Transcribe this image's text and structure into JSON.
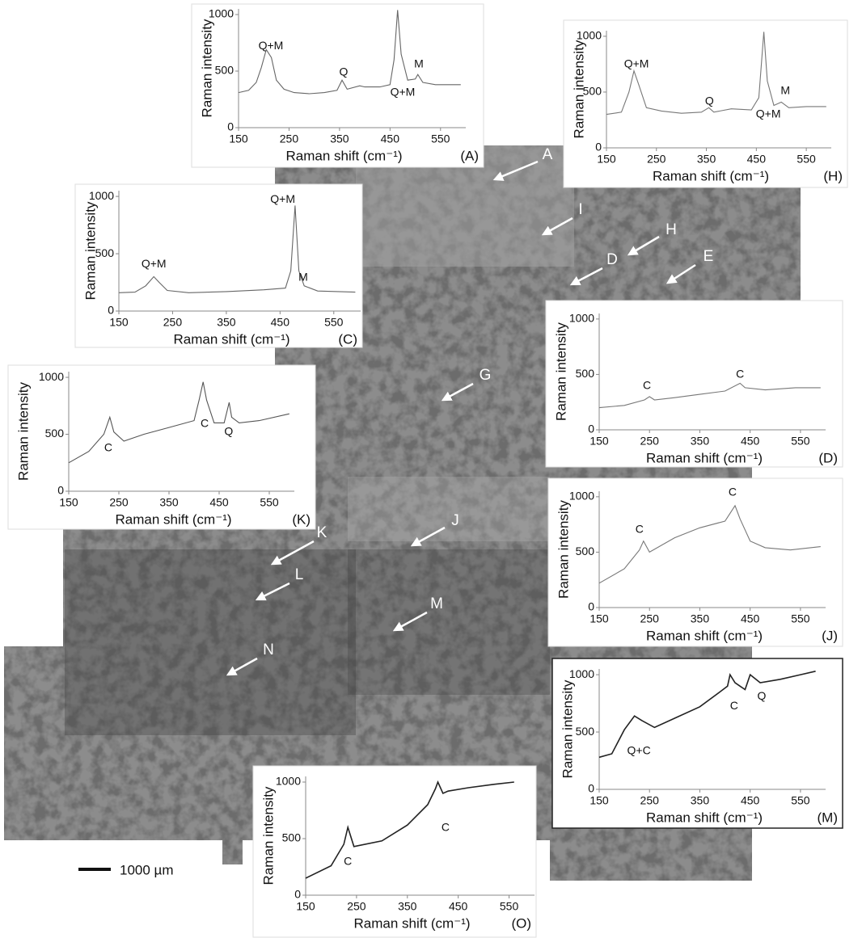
{
  "chart_data": [
    {
      "type": "line",
      "panel_label": "(A)",
      "y_label": "Raman intensity",
      "x_label": "Raman shift (cm⁻¹)",
      "color": "#666666",
      "x": [
        150,
        170,
        185,
        195,
        205,
        215,
        225,
        240,
        260,
        290,
        320,
        345,
        355,
        365,
        390,
        400,
        430,
        450,
        458,
        465,
        472,
        485,
        500,
        505,
        515,
        540,
        570,
        590
      ],
      "values": [
        310,
        330,
        400,
        530,
        690,
        620,
        420,
        340,
        310,
        300,
        310,
        330,
        420,
        340,
        370,
        360,
        360,
        380,
        600,
        1040,
        650,
        420,
        430,
        470,
        400,
        380,
        380,
        380
      ],
      "xlim": [
        150,
        600
      ],
      "ylim": [
        0,
        1050
      ],
      "xticks": [
        150,
        250,
        350,
        450,
        550
      ],
      "yticks": [
        0,
        500,
        1000
      ],
      "annotations": [
        {
          "text": "Q+M",
          "x": 214,
          "y": 721
        },
        {
          "text": "Q",
          "x": 358,
          "y": 486
        },
        {
          "text": "M",
          "x": 507,
          "y": 557
        },
        {
          "text": "Q+M",
          "x": 475,
          "y": 307
        }
      ]
    },
    {
      "type": "line",
      "panel_label": "(H)",
      "y_label": "Raman intensity",
      "x_label": "Raman shift (cm⁻¹)",
      "color": "#777777",
      "x": [
        150,
        180,
        195,
        205,
        215,
        230,
        260,
        300,
        340,
        355,
        365,
        400,
        440,
        455,
        465,
        472,
        485,
        500,
        515,
        550,
        590
      ],
      "values": [
        300,
        320,
        500,
        690,
        560,
        360,
        330,
        310,
        320,
        360,
        320,
        350,
        340,
        450,
        1040,
        600,
        380,
        410,
        360,
        370,
        370
      ],
      "xlim": [
        150,
        600
      ],
      "ylim": [
        0,
        1050
      ],
      "xticks": [
        150,
        250,
        350,
        450,
        550
      ],
      "yticks": [
        0,
        500,
        1000
      ],
      "annotations": [
        {
          "text": "Q+M",
          "x": 210,
          "y": 746
        },
        {
          "text": "Q",
          "x": 356,
          "y": 413
        },
        {
          "text": "M",
          "x": 508,
          "y": 507
        },
        {
          "text": "Q+M",
          "x": 474,
          "y": 297
        }
      ]
    },
    {
      "type": "line",
      "panel_label": "(C)",
      "y_label": "Raman intensity",
      "x_label": "Raman shift (cm⁻¹)",
      "color": "#666666",
      "x": [
        150,
        180,
        200,
        215,
        225,
        240,
        280,
        350,
        420,
        460,
        470,
        478,
        485,
        495,
        520,
        590
      ],
      "values": [
        160,
        165,
        220,
        300,
        250,
        180,
        160,
        170,
        185,
        200,
        350,
        920,
        350,
        220,
        175,
        165
      ],
      "xlim": [
        150,
        600
      ],
      "ylim": [
        0,
        1050
      ],
      "xticks": [
        150,
        250,
        350,
        450,
        550
      ],
      "yticks": [
        0,
        500,
        1000
      ],
      "annotations": [
        {
          "text": "Q+M",
          "x": 215,
          "y": 408
        },
        {
          "text": "Q+M",
          "x": 455,
          "y": 972
        },
        {
          "text": "M",
          "x": 493,
          "y": 289
        }
      ]
    },
    {
      "type": "line",
      "panel_label": "(K)",
      "y_label": "Raman intensity",
      "x_label": "Raman shift (cm⁻¹)",
      "color": "#555555",
      "x": [
        150,
        190,
        220,
        232,
        240,
        260,
        300,
        350,
        400,
        410,
        418,
        425,
        440,
        460,
        470,
        475,
        490,
        530,
        590
      ],
      "values": [
        250,
        350,
        500,
        650,
        520,
        440,
        500,
        560,
        620,
        800,
        960,
        800,
        600,
        600,
        780,
        650,
        600,
        620,
        680
      ],
      "xlim": [
        150,
        600
      ],
      "ylim": [
        0,
        1050
      ],
      "xticks": [
        150,
        250,
        350,
        450,
        550
      ],
      "yticks": [
        0,
        500,
        1000
      ],
      "annotations": [
        {
          "text": "C",
          "x": 229,
          "y": 376
        },
        {
          "text": "C",
          "x": 421,
          "y": 589
        },
        {
          "text": "Q",
          "x": 469,
          "y": 518
        }
      ]
    },
    {
      "type": "line",
      "panel_label": "(D)",
      "y_label": "Raman intensity",
      "x_label": "Raman shift (cm⁻¹)",
      "color": "#777777",
      "x": [
        150,
        200,
        240,
        250,
        260,
        300,
        350,
        400,
        430,
        440,
        480,
        540,
        590
      ],
      "values": [
        200,
        220,
        270,
        300,
        270,
        290,
        320,
        350,
        420,
        380,
        360,
        380,
        380
      ],
      "xlim": [
        150,
        600
      ],
      "ylim": [
        0,
        1050
      ],
      "xticks": [
        150,
        250,
        350,
        450,
        550
      ],
      "yticks": [
        0,
        500,
        1000
      ],
      "annotations": [
        {
          "text": "C",
          "x": 245,
          "y": 394
        },
        {
          "text": "C",
          "x": 430,
          "y": 496
        }
      ]
    },
    {
      "type": "line",
      "panel_label": "(J)",
      "y_label": "Raman intensity",
      "x_label": "Raman shift (cm⁻¹)",
      "color": "#777777",
      "x": [
        150,
        200,
        230,
        238,
        250,
        300,
        350,
        400,
        410,
        420,
        430,
        450,
        480,
        530,
        590
      ],
      "values": [
        220,
        350,
        520,
        600,
        500,
        630,
        720,
        780,
        850,
        920,
        800,
        600,
        540,
        520,
        550
      ],
      "xlim": [
        150,
        600
      ],
      "ylim": [
        0,
        1050
      ],
      "xticks": [
        150,
        250,
        350,
        450,
        550
      ],
      "yticks": [
        0,
        500,
        1000
      ],
      "annotations": [
        {
          "text": "C",
          "x": 230,
          "y": 701
        },
        {
          "text": "C",
          "x": 415,
          "y": 1036
        }
      ]
    },
    {
      "type": "line",
      "panel_label": "(M)",
      "y_label": "Raman intensity",
      "x_label": "Raman shift (cm⁻¹)",
      "color": "#222222",
      "x": [
        150,
        175,
        200,
        220,
        235,
        260,
        300,
        350,
        390,
        405,
        410,
        420,
        430,
        440,
        450,
        470,
        510,
        550,
        580
      ],
      "values": [
        280,
        310,
        520,
        640,
        600,
        540,
        620,
        720,
        850,
        900,
        1000,
        930,
        900,
        870,
        1000,
        930,
        960,
        1000,
        1030
      ],
      "xlim": [
        150,
        600
      ],
      "ylim": [
        0,
        1050
      ],
      "xticks": [
        150,
        250,
        350,
        450,
        550
      ],
      "yticks": [
        0,
        500,
        1000
      ],
      "annotations": [
        {
          "text": "Q+C",
          "x": 229,
          "y": 331
        },
        {
          "text": "C",
          "x": 418,
          "y": 725
        },
        {
          "text": "Q",
          "x": 473,
          "y": 810
        }
      ]
    },
    {
      "type": "line",
      "panel_label": "(O)",
      "y_label": "Raman intensity",
      "x_label": "Raman shift (cm⁻¹)",
      "color": "#222222",
      "x": [
        150,
        200,
        225,
        233,
        245,
        300,
        350,
        390,
        405,
        410,
        420,
        430,
        470,
        520,
        560
      ],
      "values": [
        150,
        260,
        450,
        600,
        430,
        480,
        620,
        800,
        940,
        1000,
        900,
        920,
        950,
        980,
        1000
      ],
      "xlim": [
        150,
        600
      ],
      "ylim": [
        0,
        1050
      ],
      "xticks": [
        150,
        250,
        350,
        450,
        550
      ],
      "yticks": [
        0,
        500,
        1000
      ],
      "annotations": [
        {
          "text": "C",
          "x": 233,
          "y": 293
        },
        {
          "text": "C",
          "x": 425,
          "y": 593
        }
      ]
    }
  ],
  "image_labels": [
    "A",
    "I",
    "H",
    "D",
    "E",
    "G",
    "K",
    "L",
    "J",
    "M",
    "N"
  ],
  "scale_bar": "1000 µm"
}
